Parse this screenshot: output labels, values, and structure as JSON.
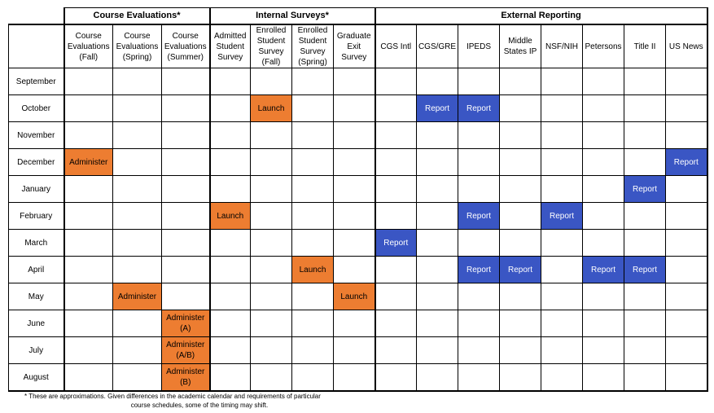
{
  "groups": [
    {
      "label": "Course Evaluations*"
    },
    {
      "label": "Internal Surveys*"
    },
    {
      "label": "External Reporting"
    }
  ],
  "columns": [
    "Course\nEvaluations\n(Fall)",
    "Course\nEvaluations\n(Spring)",
    "Course\nEvaluations\n(Summer)",
    "Admitted\nStudent\nSurvey",
    "Enrolled\nStudent\nSurvey\n(Fall)",
    "Enrolled\nStudent\nSurvey\n(Spring)",
    "Graduate\nExit\nSurvey",
    "CGS Intl",
    "CGS/GRE",
    "IPEDS",
    "Middle\nStates IP",
    "NSF/NIH",
    "Petersons",
    "Title II",
    "US News"
  ],
  "rows": [
    {
      "month": "September",
      "cells": [
        "",
        "",
        "",
        "",
        "",
        "",
        "",
        "",
        "",
        "",
        "",
        "",
        "",
        "",
        ""
      ]
    },
    {
      "month": "October",
      "cells": [
        "",
        "",
        "",
        "",
        "Launch",
        "",
        "",
        "",
        "Report",
        "Report",
        "",
        "",
        "",
        "",
        ""
      ]
    },
    {
      "month": "November",
      "cells": [
        "",
        "",
        "",
        "",
        "",
        "",
        "",
        "",
        "",
        "",
        "",
        "",
        "",
        "",
        ""
      ]
    },
    {
      "month": "December",
      "cells": [
        "Administer",
        "",
        "",
        "",
        "",
        "",
        "",
        "",
        "",
        "",
        "",
        "",
        "",
        "",
        "Report"
      ]
    },
    {
      "month": "January",
      "cells": [
        "",
        "",
        "",
        "",
        "",
        "",
        "",
        "",
        "",
        "",
        "",
        "",
        "",
        "Report",
        ""
      ]
    },
    {
      "month": "February",
      "cells": [
        "",
        "",
        "",
        "Launch",
        "",
        "",
        "",
        "",
        "",
        "Report",
        "",
        "Report",
        "",
        "",
        ""
      ]
    },
    {
      "month": "March",
      "cells": [
        "",
        "",
        "",
        "",
        "",
        "",
        "",
        "Report",
        "",
        "",
        "",
        "",
        "",
        "",
        ""
      ]
    },
    {
      "month": "April",
      "cells": [
        "",
        "",
        "",
        "",
        "",
        "Launch",
        "",
        "",
        "",
        "Report",
        "Report",
        "",
        "Report",
        "Report",
        ""
      ]
    },
    {
      "month": "May",
      "cells": [
        "",
        "Administer",
        "",
        "",
        "",
        "",
        "Launch",
        "",
        "",
        "",
        "",
        "",
        "",
        "",
        ""
      ]
    },
    {
      "month": "June",
      "cells": [
        "",
        "",
        "Administer\n(A)",
        "",
        "",
        "",
        "",
        "",
        "",
        "",
        "",
        "",
        "",
        "",
        ""
      ]
    },
    {
      "month": "July",
      "cells": [
        "",
        "",
        "Administer\n(A/B)",
        "",
        "",
        "",
        "",
        "",
        "",
        "",
        "",
        "",
        "",
        "",
        ""
      ]
    },
    {
      "month": "August",
      "cells": [
        "",
        "",
        "Administer\n(B)",
        "",
        "",
        "",
        "",
        "",
        "",
        "",
        "",
        "",
        "",
        "",
        ""
      ]
    }
  ],
  "colors": {
    "activity": "#ed7d31",
    "report": "#3a56c4"
  },
  "footnote": {
    "line1": "* These are approximations. Given differences in the academic calendar and requirements of particular",
    "line2": "course schedules, some of the timing may shift."
  }
}
